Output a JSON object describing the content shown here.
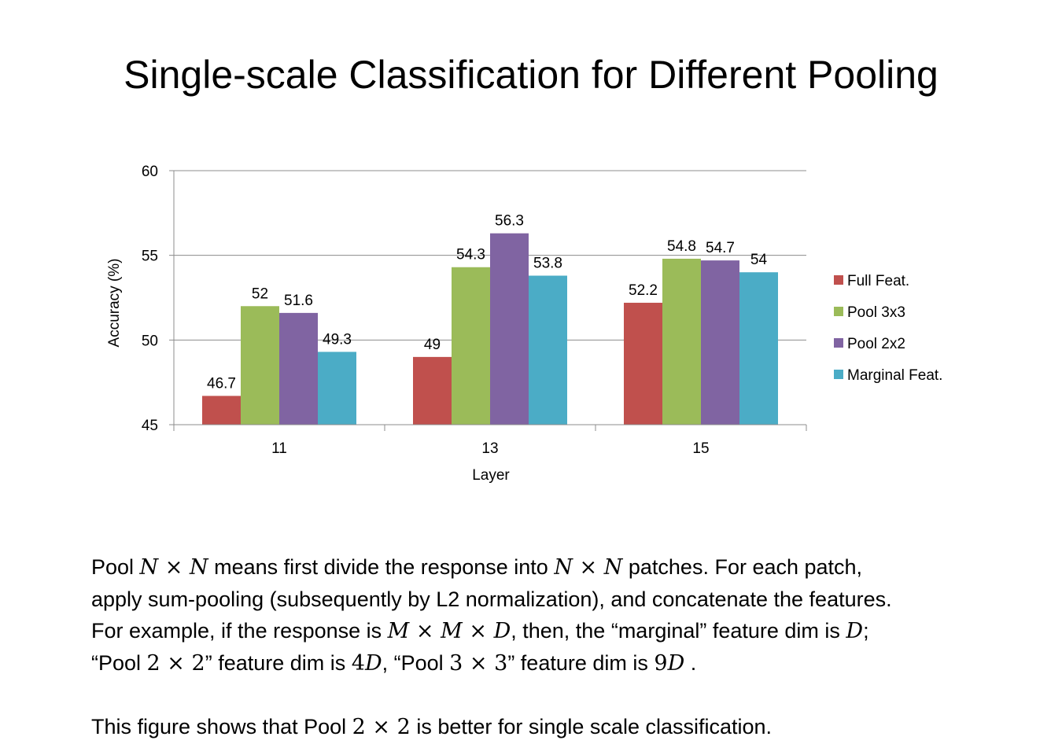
{
  "title": "Single-scale Classification for Different Pooling",
  "chart_data": {
    "type": "bar",
    "categories": [
      "11",
      "13",
      "15"
    ],
    "series": [
      {
        "name": "Full Feat.",
        "color": "#c0504d",
        "values": [
          46.7,
          49,
          52.2
        ]
      },
      {
        "name": "Pool 3x3",
        "color": "#9bbb59",
        "values": [
          52,
          54.3,
          54.8
        ]
      },
      {
        "name": "Pool 2x2",
        "color": "#8064a2",
        "values": [
          51.6,
          56.3,
          54.7
        ]
      },
      {
        "name": "Marginal Feat.",
        "color": "#4bacc6",
        "values": [
          49.3,
          53.8,
          54
        ]
      }
    ],
    "xlabel": "Layer",
    "ylabel": "Accuracy (%)",
    "ylim": [
      45,
      60
    ],
    "yticks": [
      "45",
      "50",
      "55",
      "60"
    ],
    "grid": true,
    "legend_position": "right"
  },
  "description": {
    "line1": {
      "a": "Pool ",
      "b": "N",
      "c": " × ",
      "d": "N",
      "e": " means first divide the response into ",
      "f": "N",
      "g": " × ",
      "h": "N",
      "i": " patches. For each patch,"
    },
    "line2": "apply sum-pooling (subsequently by L2 normalization), and concatenate the features.",
    "line3": {
      "a": "For example, if the response is ",
      "b": "M",
      "c": " × ",
      "d": "M",
      "e": " × ",
      "f": "D",
      "g": ", then, the “marginal” feature dim is ",
      "h": "D",
      "i": ";"
    },
    "line4": {
      "a": "“Pool ",
      "b": "2 × 2",
      "c": "” feature dim is ",
      "d": "4",
      "e": "D",
      "f": ", “Pool ",
      "g": "3 × 3",
      "h": "” feature dim is ",
      "i": "9",
      "j": "D",
      "k": " ."
    },
    "conclusion": {
      "a": "This figure shows that Pool ",
      "b": "2 × 2",
      "c": " is better for single scale classification."
    }
  }
}
